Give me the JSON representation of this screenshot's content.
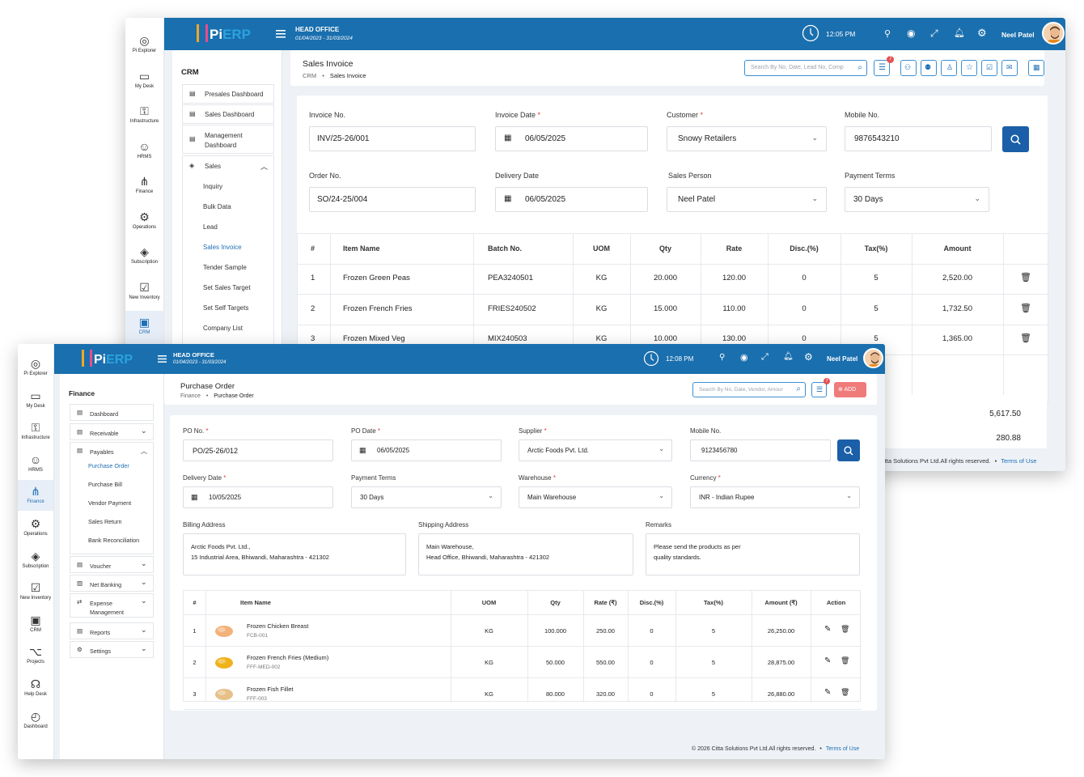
{
  "rail_back": [
    {
      "label": "Pi Explorer",
      "icon": "compass-icon"
    },
    {
      "label": "My Desk",
      "icon": "desk-icon"
    },
    {
      "label": "Infrastructure",
      "icon": "infrastructure-icon"
    },
    {
      "label": "HRMS",
      "icon": "people-icon"
    },
    {
      "label": "Finance",
      "icon": "finance-icon"
    },
    {
      "label": "Operations",
      "icon": "operations-icon"
    },
    {
      "label": "Subscription",
      "icon": "tag-icon"
    },
    {
      "label": "New Inventory",
      "icon": "inventory-icon"
    },
    {
      "label": "CRM",
      "icon": "crm-icon"
    }
  ],
  "rail_front": [
    {
      "label": "Pi Explorer",
      "icon": "compass-icon"
    },
    {
      "label": "My Desk",
      "icon": "desk-icon"
    },
    {
      "label": "Infrastructure",
      "icon": "infrastructure-icon"
    },
    {
      "label": "HRMS",
      "icon": "people-icon"
    },
    {
      "label": "Finance",
      "icon": "finance-icon"
    },
    {
      "label": "Operations",
      "icon": "operations-icon"
    },
    {
      "label": "Subscription",
      "icon": "tag-icon"
    },
    {
      "label": "New Inventory",
      "icon": "inventory-icon"
    },
    {
      "label": "CRM",
      "icon": "crm-icon"
    },
    {
      "label": "Projects",
      "icon": "projects-icon"
    },
    {
      "label": "Help Desk",
      "icon": "headset-icon"
    },
    {
      "label": "Dashboard",
      "icon": "gauge-icon"
    }
  ],
  "back": {
    "logo_pi": "Pi",
    "logo_erp": "ERP",
    "office": "HEAD OFFICE",
    "period": "01/04/2023 - 31/03/2024",
    "time": "12:05 PM",
    "user": "Neel Patel",
    "menu_title": "CRM",
    "menu": [
      "Presales Dashboard",
      "Sales Dashboard",
      "Management Dashboard",
      "Sales"
    ],
    "submenu": [
      "Inquiry",
      "Bulk Data",
      "Lead",
      "Sales Invoice",
      "Tender Sample",
      "Set Sales Target",
      "Set Self Targets",
      "Company List"
    ],
    "page_title": "Sales Invoice",
    "crumb_1": "CRM",
    "crumb_2": "Sales Invoice",
    "search_placeholder": "Search By No, Date, Lead No, Comp",
    "filter_badge": "7",
    "labels": {
      "invoice_no": "Invoice No.",
      "invoice_date": "Invoice Date",
      "customer": "Customer",
      "mobile": "Mobile No.",
      "order_no": "Order No.",
      "delivery_date": "Delivery Date",
      "sales_person": "Sales Person",
      "payment_terms": "Payment Terms"
    },
    "values": {
      "invoice_no": "INV/25-26/001",
      "invoice_date": "06/05/2025",
      "customer": "Snowy Retailers",
      "mobile": "9876543210",
      "order_no": "SO/24-25/004",
      "delivery_date": "06/05/2025",
      "sales_person": "Neel Patel",
      "payment_terms": "30 Days"
    },
    "columns": [
      "#",
      "Item Name",
      "Batch No.",
      "UOM",
      "Qty",
      "Rate",
      "Disc.(%)",
      "Tax(%)",
      "Amount"
    ],
    "rows": [
      [
        "1",
        "Frozen Green Peas",
        "PEA3240501",
        "KG",
        "20.000",
        "120.00",
        "0",
        "5",
        "2,520.00"
      ],
      [
        "2",
        "Frozen French Fries",
        "FRIES240502",
        "KG",
        "15.000",
        "110.00",
        "0",
        "5",
        "1,732.50"
      ],
      [
        "3",
        "Frozen Mixed Veg",
        "MIX240503",
        "KG",
        "10.000",
        "130.00",
        "0",
        "5",
        "1,365.00"
      ]
    ],
    "total_1": "5,617.50",
    "total_2": "280.88",
    "footer": "itta Solutions Pvt Ltd.All rights reserved.",
    "footer_link": "Terms of Use"
  },
  "front": {
    "logo_pi": "Pi",
    "logo_erp": "ERP",
    "office": "HEAD OFFICE",
    "period": "01/04/2023 - 31/03/2024",
    "time": "12:08 PM",
    "user": "Neel Patel",
    "menu_title": "Finance",
    "menu": [
      "Dashboard",
      "Receivable",
      "Payables",
      "Voucher",
      "Net Banking",
      "Expense Management",
      "Reports",
      "Settings"
    ],
    "submenu": [
      "Purchase Order",
      "Purchase Bill",
      "Vendor Payment",
      "Sales Return",
      "Bank Reconciliation"
    ],
    "page_title": "Purchase Order",
    "crumb_1": "Finance",
    "crumb_2": "Purchase Order",
    "search_placeholder": "Search By No, Date, Vendor, Amour",
    "filter_badge": "7",
    "add_label": "ADD",
    "labels": {
      "po_no": "PO No.",
      "po_date": "PO Date",
      "supplier": "Supplier",
      "mobile": "Mobile No.",
      "delivery_date": "Delivery Date",
      "payment_terms": "Payment Terms",
      "warehouse": "Warehouse",
      "currency": "Currency",
      "billing": "Billing Address",
      "shipping": "Shipping Address",
      "remarks": "Remarks"
    },
    "values": {
      "po_no": "PO/25-26/012",
      "po_date": "06/05/2025",
      "supplier": "Arctic Foods Pvt. Ltd.",
      "mobile": "9123456780",
      "delivery_date": "10/05/2025",
      "payment_terms": "30 Days",
      "warehouse": "Main Warehouse",
      "currency": "INR - Indian Rupee",
      "billing_1": "Arctic Foods Pvt. Ltd.,",
      "billing_2": "15 Industrial Area, Bhiwandi, Maharashtra - 421302",
      "shipping_1": "Main Warehouse,",
      "shipping_2": "Head Office, Bhiwandi, Maharashtra - 421302",
      "remarks_1": "Please send the products as per",
      "remarks_2": "quality standards."
    },
    "columns": [
      "#",
      "Item Name",
      "UOM",
      "Qty",
      "Rate (₹)",
      "Disc.(%)",
      "Tax(%)",
      "Amount (₹)",
      "Action"
    ],
    "rows": [
      {
        "no": "1",
        "name": "Frozen Chicken Breast",
        "code": "FCB-001",
        "uom": "KG",
        "qty": "100.000",
        "rate": "250.00",
        "disc": "0",
        "tax": "5",
        "amount": "26,250.00"
      },
      {
        "no": "2",
        "name": "Frozen French Fries (Medium)",
        "code": "FFF-MED-002",
        "uom": "KG",
        "qty": "50.000",
        "rate": "550.00",
        "disc": "0",
        "tax": "5",
        "amount": "28,875.00"
      },
      {
        "no": "3",
        "name": "Frozen Fish Fillet",
        "code": "FFF-003",
        "uom": "KG",
        "qty": "80.000",
        "rate": "320.00",
        "disc": "0",
        "tax": "5",
        "amount": "26,880.00"
      }
    ],
    "footer": "© 2026 Citta Solutions Pvt Ltd.All rights reserved.",
    "footer_link": "Terms of Use"
  },
  "colors": {
    "topbar": "#1a6fae",
    "accent": "#1e6fb5",
    "primary_button": "#1a5fa8",
    "add_button": "#f07b7b",
    "required": "#e23b3b"
  }
}
